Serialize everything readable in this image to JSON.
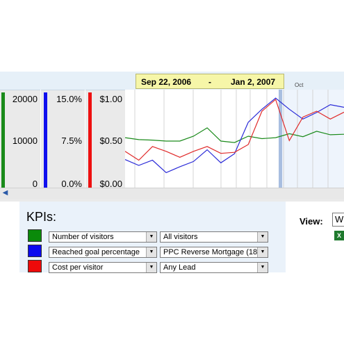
{
  "date_range": {
    "start": "Sep 22, 2006",
    "separator": "-",
    "end": "Jan 2, 2007"
  },
  "timeline": {
    "month_labels": [
      "Oct"
    ]
  },
  "axes": [
    {
      "name": "visitors",
      "color": "#1a8a1a",
      "ticks": [
        "20000",
        "10000",
        "0"
      ]
    },
    {
      "name": "goal",
      "color": "#1010ee",
      "ticks": [
        "15.0%",
        "7.5%",
        "0.0%"
      ]
    },
    {
      "name": "cost",
      "color": "#ee1010",
      "ticks": [
        "$1.00",
        "$0.50",
        "$0.00"
      ]
    }
  ],
  "colors": {
    "visitors": "#1a8a1a",
    "goal": "#2a2ad8",
    "cost": "#e02a2a"
  },
  "series": {
    "visitors": [
      10200,
      9800,
      9700,
      9500,
      9500,
      10500,
      12200,
      9500,
      9200,
      10500,
      10000,
      10200,
      11000,
      10400,
      11500,
      10800,
      10900
    ],
    "goal": [
      4.3,
      3.4,
      4.2,
      2.3,
      3.2,
      4.0,
      5.8,
      3.8,
      5.2,
      10.0,
      12.0,
      13.7,
      12.0,
      10.5,
      11.5,
      12.7,
      12.3
    ],
    "cost": [
      0.37,
      0.28,
      0.42,
      0.37,
      0.31,
      0.37,
      0.42,
      0.35,
      0.36,
      0.44,
      0.78,
      0.9,
      0.48,
      0.72,
      0.78,
      0.7,
      0.77
    ]
  },
  "kpis": {
    "title": "KPIs:",
    "rows": [
      {
        "metric": "Number of visitors",
        "filter": "All visitors",
        "color": "#0a8a0a"
      },
      {
        "metric": "Reached goal percentage",
        "filter": "PPC Reverse Mortgage (18)",
        "color": "#0a0aee"
      },
      {
        "metric": "Cost per visitor",
        "filter": "Any Lead",
        "color": "#ee0a0a"
      }
    ]
  },
  "view": {
    "label": "View:",
    "value": "W"
  },
  "icons": {
    "scroll_left": "left-arrow-icon",
    "excel": "excel-icon",
    "dropdown": "chevron-down-icon"
  }
}
